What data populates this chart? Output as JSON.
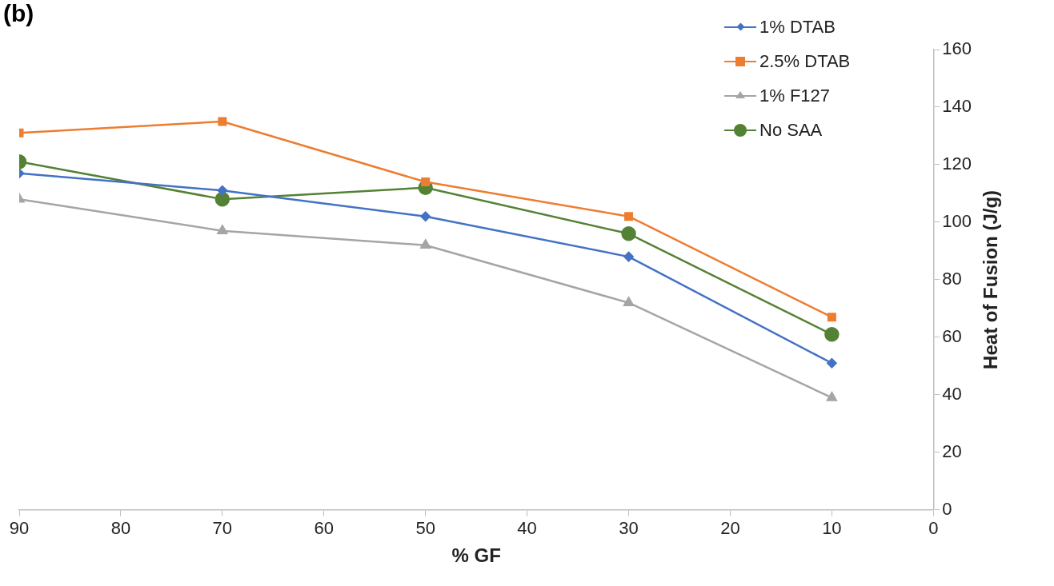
{
  "chart_data": {
    "type": "line",
    "title": "(b)",
    "xlabel": "% GF",
    "ylabel": "Heat of Fusion (J/g)",
    "x": [
      90,
      70,
      50,
      30,
      10
    ],
    "series": [
      {
        "name": "1% DTAB",
        "color": "#4472c4",
        "marker": "diamond",
        "values": [
          117,
          111,
          102,
          88,
          51
        ]
      },
      {
        "name": "2.5% DTAB",
        "color": "#ed7d31",
        "marker": "square",
        "values": [
          131,
          135,
          114,
          102,
          67
        ]
      },
      {
        "name": "1% F127",
        "color": "#a5a5a5",
        "marker": "triangle",
        "values": [
          108,
          97,
          92,
          72,
          39
        ]
      },
      {
        "name": "No SAA",
        "color": "#548235",
        "marker": "circle",
        "values": [
          121,
          108,
          112,
          96,
          61
        ]
      }
    ],
    "xlim": [
      90,
      0
    ],
    "xticks": [
      90,
      80,
      70,
      60,
      50,
      40,
      30,
      20,
      10,
      0
    ],
    "ylim": [
      0,
      160
    ],
    "yticks": [
      0,
      20,
      40,
      60,
      80,
      100,
      120,
      140,
      160
    ],
    "grid": false,
    "legend": "top right"
  }
}
